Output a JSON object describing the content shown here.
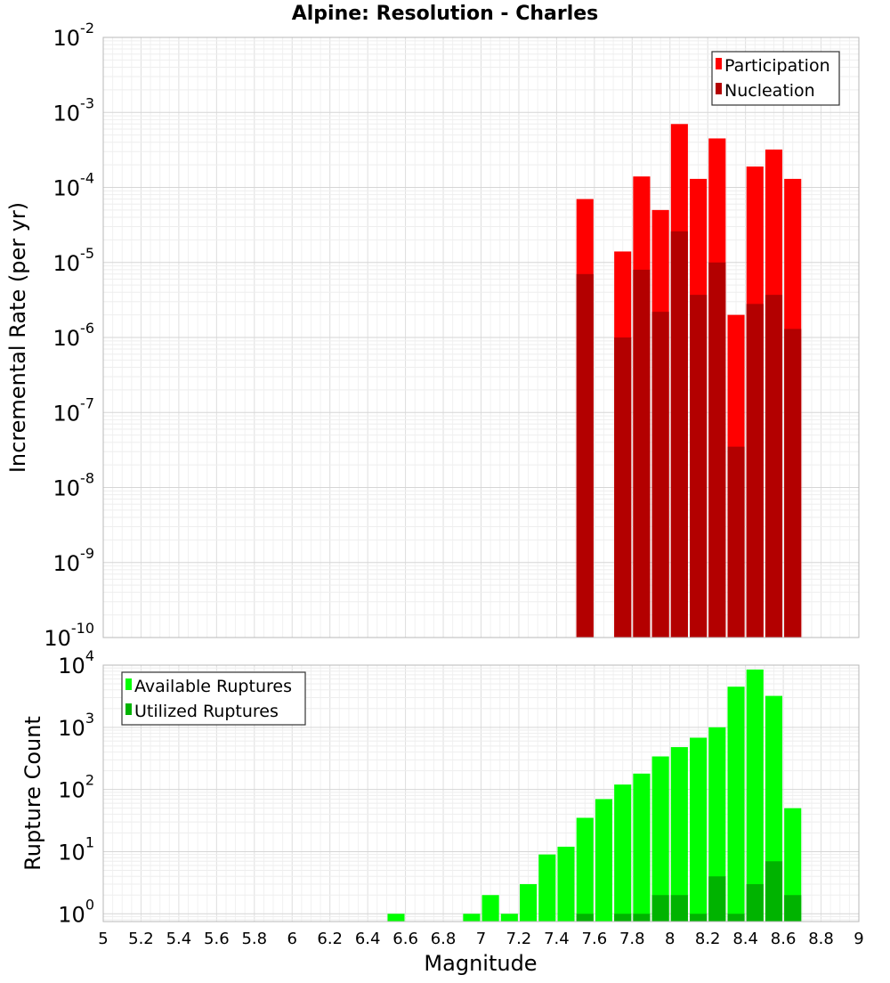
{
  "chart_data": {
    "type": "bar",
    "title": "Alpine: Resolution - Charles",
    "xlabel": "Magnitude",
    "xlim": [
      5,
      9
    ],
    "x_ticks": [
      "5",
      "5.2",
      "5.4",
      "5.6",
      "5.8",
      "6",
      "6.2",
      "6.4",
      "6.6",
      "6.8",
      "7",
      "7.2",
      "7.4",
      "7.6",
      "7.8",
      "8",
      "8.2",
      "8.4",
      "8.6",
      "8.8",
      "9"
    ],
    "bar_width": 0.09,
    "panels": [
      {
        "ylabel": "Incremental Rate (per yr)",
        "yscale": "log",
        "ylim": [
          1e-10,
          0.01
        ],
        "legend_position": "top-right",
        "y_ticks": [
          {
            "base": "10",
            "exp": "-2"
          },
          {
            "base": "10",
            "exp": "-3"
          },
          {
            "base": "10",
            "exp": "-4"
          },
          {
            "base": "10",
            "exp": "-5"
          },
          {
            "base": "10",
            "exp": "-6"
          },
          {
            "base": "10",
            "exp": "-7"
          },
          {
            "base": "10",
            "exp": "-8"
          },
          {
            "base": "10",
            "exp": "-9"
          },
          {
            "base": "10",
            "exp": "-10"
          }
        ],
        "series": [
          {
            "name": "Participation",
            "color": "#ff0000",
            "x": [
              7.55,
              7.75,
              7.85,
              7.95,
              8.05,
              8.15,
              8.25,
              8.35,
              8.45,
              8.55,
              8.65
            ],
            "values": [
              7e-05,
              1.4e-05,
              0.00014,
              5e-05,
              0.0007,
              0.00013,
              0.00045,
              2e-06,
              0.00019,
              0.00032,
              0.00013
            ]
          },
          {
            "name": "Nucleation",
            "color": "#b30000",
            "x": [
              7.55,
              7.75,
              7.85,
              7.95,
              8.05,
              8.15,
              8.25,
              8.35,
              8.45,
              8.55,
              8.65
            ],
            "values": [
              7e-06,
              1e-06,
              8e-06,
              2.2e-06,
              2.6e-05,
              3.7e-06,
              1e-05,
              3.5e-08,
              2.8e-06,
              3.7e-06,
              1.3e-06
            ]
          }
        ]
      },
      {
        "ylabel": "Rupture Count",
        "yscale": "log",
        "ylim": [
          0.75,
          10000
        ],
        "legend_position": "top-left",
        "y_ticks": [
          {
            "base": "10",
            "exp": "4"
          },
          {
            "base": "10",
            "exp": "3"
          },
          {
            "base": "10",
            "exp": "2"
          },
          {
            "base": "10",
            "exp": "1"
          },
          {
            "base": "10",
            "exp": "0"
          }
        ],
        "series": [
          {
            "name": "Available Ruptures",
            "color": "#00ff00",
            "x": [
              6.55,
              6.95,
              7.05,
              7.15,
              7.25,
              7.35,
              7.45,
              7.55,
              7.65,
              7.75,
              7.85,
              7.95,
              8.05,
              8.15,
              8.25,
              8.35,
              8.45,
              8.55,
              8.65
            ],
            "values": [
              1,
              1,
              2,
              1,
              3,
              9,
              12,
              35,
              70,
              120,
              180,
              340,
              480,
              680,
              1000,
              4500,
              8500,
              3200,
              50
            ]
          },
          {
            "name": "Utilized Ruptures",
            "color": "#00b300",
            "x": [
              7.55,
              7.75,
              7.85,
              7.95,
              8.05,
              8.15,
              8.25,
              8.35,
              8.45,
              8.55,
              8.65
            ],
            "values": [
              1,
              1,
              1,
              2,
              2,
              1,
              4,
              1,
              3,
              7,
              2
            ]
          }
        ]
      }
    ]
  }
}
